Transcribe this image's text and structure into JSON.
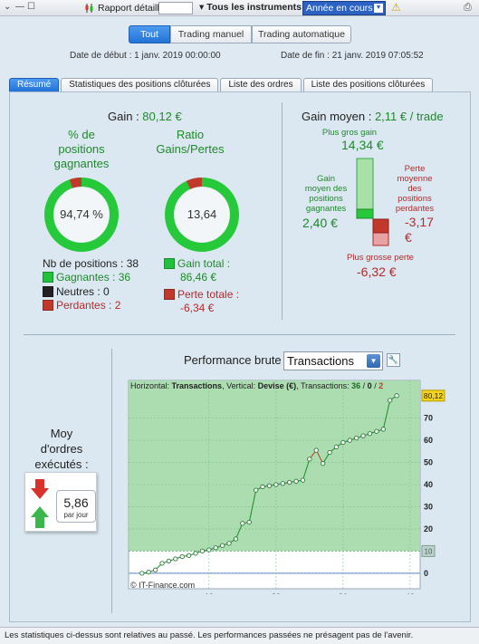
{
  "toolbar": {
    "window_icons": [
      "⌄",
      "—",
      "☐"
    ],
    "report_label": "Rapport détaillé",
    "report_input_value": "",
    "instruments_label": "▾ Tous les instruments",
    "period_select": "Année en cours",
    "warning_icon": "warning-icon",
    "print_icon": "print-icon"
  },
  "mode_buttons": [
    "Tout",
    "Trading manuel",
    "Trading automatique"
  ],
  "dates": {
    "start": "Date de début : 1 janv. 2019 00:00:00",
    "end": "Date de fin : 21 janv. 2019 07:05:52"
  },
  "tabs": [
    "Résumé",
    "Statistiques des positions clôturées",
    "Liste des ordres",
    "Liste des positions clôturées"
  ],
  "summary": {
    "gain_label": "Gain : ",
    "gain_value": "80,12 €",
    "pct_title": [
      "% de",
      "positions",
      "gagnantes"
    ],
    "pct_value": "94,74 %",
    "pct_fraction": 0.9474,
    "ratio_title": [
      "Ratio",
      "Gains/Pertes"
    ],
    "ratio_value": "13,64",
    "ratio_fraction": 0.9316,
    "nb_positions": "Nb de positions : 38",
    "gagnantes": "Gagnantes : 36",
    "neutres": "Neutres : 0",
    "perdantes": "Perdantes : 2",
    "gain_total_label": "Gain total :",
    "gain_total_value": "86,46 €",
    "perte_totale_label": "Perte totale :",
    "perte_totale_value": "-6,34 €"
  },
  "gain_moyen": {
    "title_label": "Gain moyen : ",
    "title_value": "2,11 € / trade",
    "plus_gros_gain_label": "Plus gros gain",
    "plus_gros_gain_value": "14,34 €",
    "gain_moyen_pos_label": [
      "Gain",
      "moyen des",
      "positions",
      "gagnantes"
    ],
    "gain_moyen_pos_value": "2,40 €",
    "perte_moyenne_label": [
      "Perte",
      "moyenne",
      "des",
      "positions",
      "perdantes"
    ],
    "perte_moyenne_value": [
      "-3,17",
      "€"
    ],
    "plus_grosse_perte_label": "Plus grosse perte",
    "plus_grosse_perte_value": "-6,32 €"
  },
  "performance": {
    "title": "Performance brute",
    "select_value": "Transactions",
    "moy_label": [
      "Moy",
      "d'ordres",
      "exécutés :"
    ],
    "per_day_value": "5,86",
    "per_day_unit": "par jour"
  },
  "chart_data": {
    "type": "line",
    "header": {
      "horizontal_label": "Horizontal: ",
      "horizontal_value": "Transactions",
      "vertical_label": ", Vertical: ",
      "vertical_value": "Devise (€)",
      "transactions_label": ", Transactions: ",
      "wins": "36",
      "sep1": " / ",
      "neutral": "0",
      "sep2": " / ",
      "losses": "2"
    },
    "copyright": "© IT-Finance.com",
    "xlim": [
      -2,
      41.5
    ],
    "ylim": [
      -7,
      87
    ],
    "x_ticks": [
      10,
      20,
      30,
      40
    ],
    "y_ticks": [
      0,
      10,
      20,
      30,
      40,
      50,
      60,
      70
    ],
    "last_value_label": "80,12",
    "marker_label": "10",
    "marker_value": 10,
    "baseline_value": 0,
    "x": [
      0,
      1,
      2,
      3,
      4,
      5,
      6,
      7,
      8,
      9,
      10,
      11,
      12,
      13,
      14,
      15,
      16,
      17,
      18,
      19,
      20,
      21,
      22,
      23,
      24,
      25,
      26,
      27,
      28,
      29,
      30,
      31,
      32,
      33,
      34,
      35,
      36,
      37,
      38
    ],
    "values": [
      0,
      0.5,
      1.5,
      4.5,
      5.5,
      6.5,
      7.5,
      8,
      9,
      10,
      10.5,
      11.5,
      12.5,
      13.5,
      15.5,
      22.5,
      23,
      37.5,
      39,
      39.5,
      40,
      40.5,
      41,
      41.5,
      42,
      51.5,
      55.5,
      49.5,
      54.5,
      57,
      59,
      60,
      61,
      62,
      63,
      64,
      65,
      78,
      80.12
    ],
    "loss_indices": [
      26,
      27
    ]
  }
}
